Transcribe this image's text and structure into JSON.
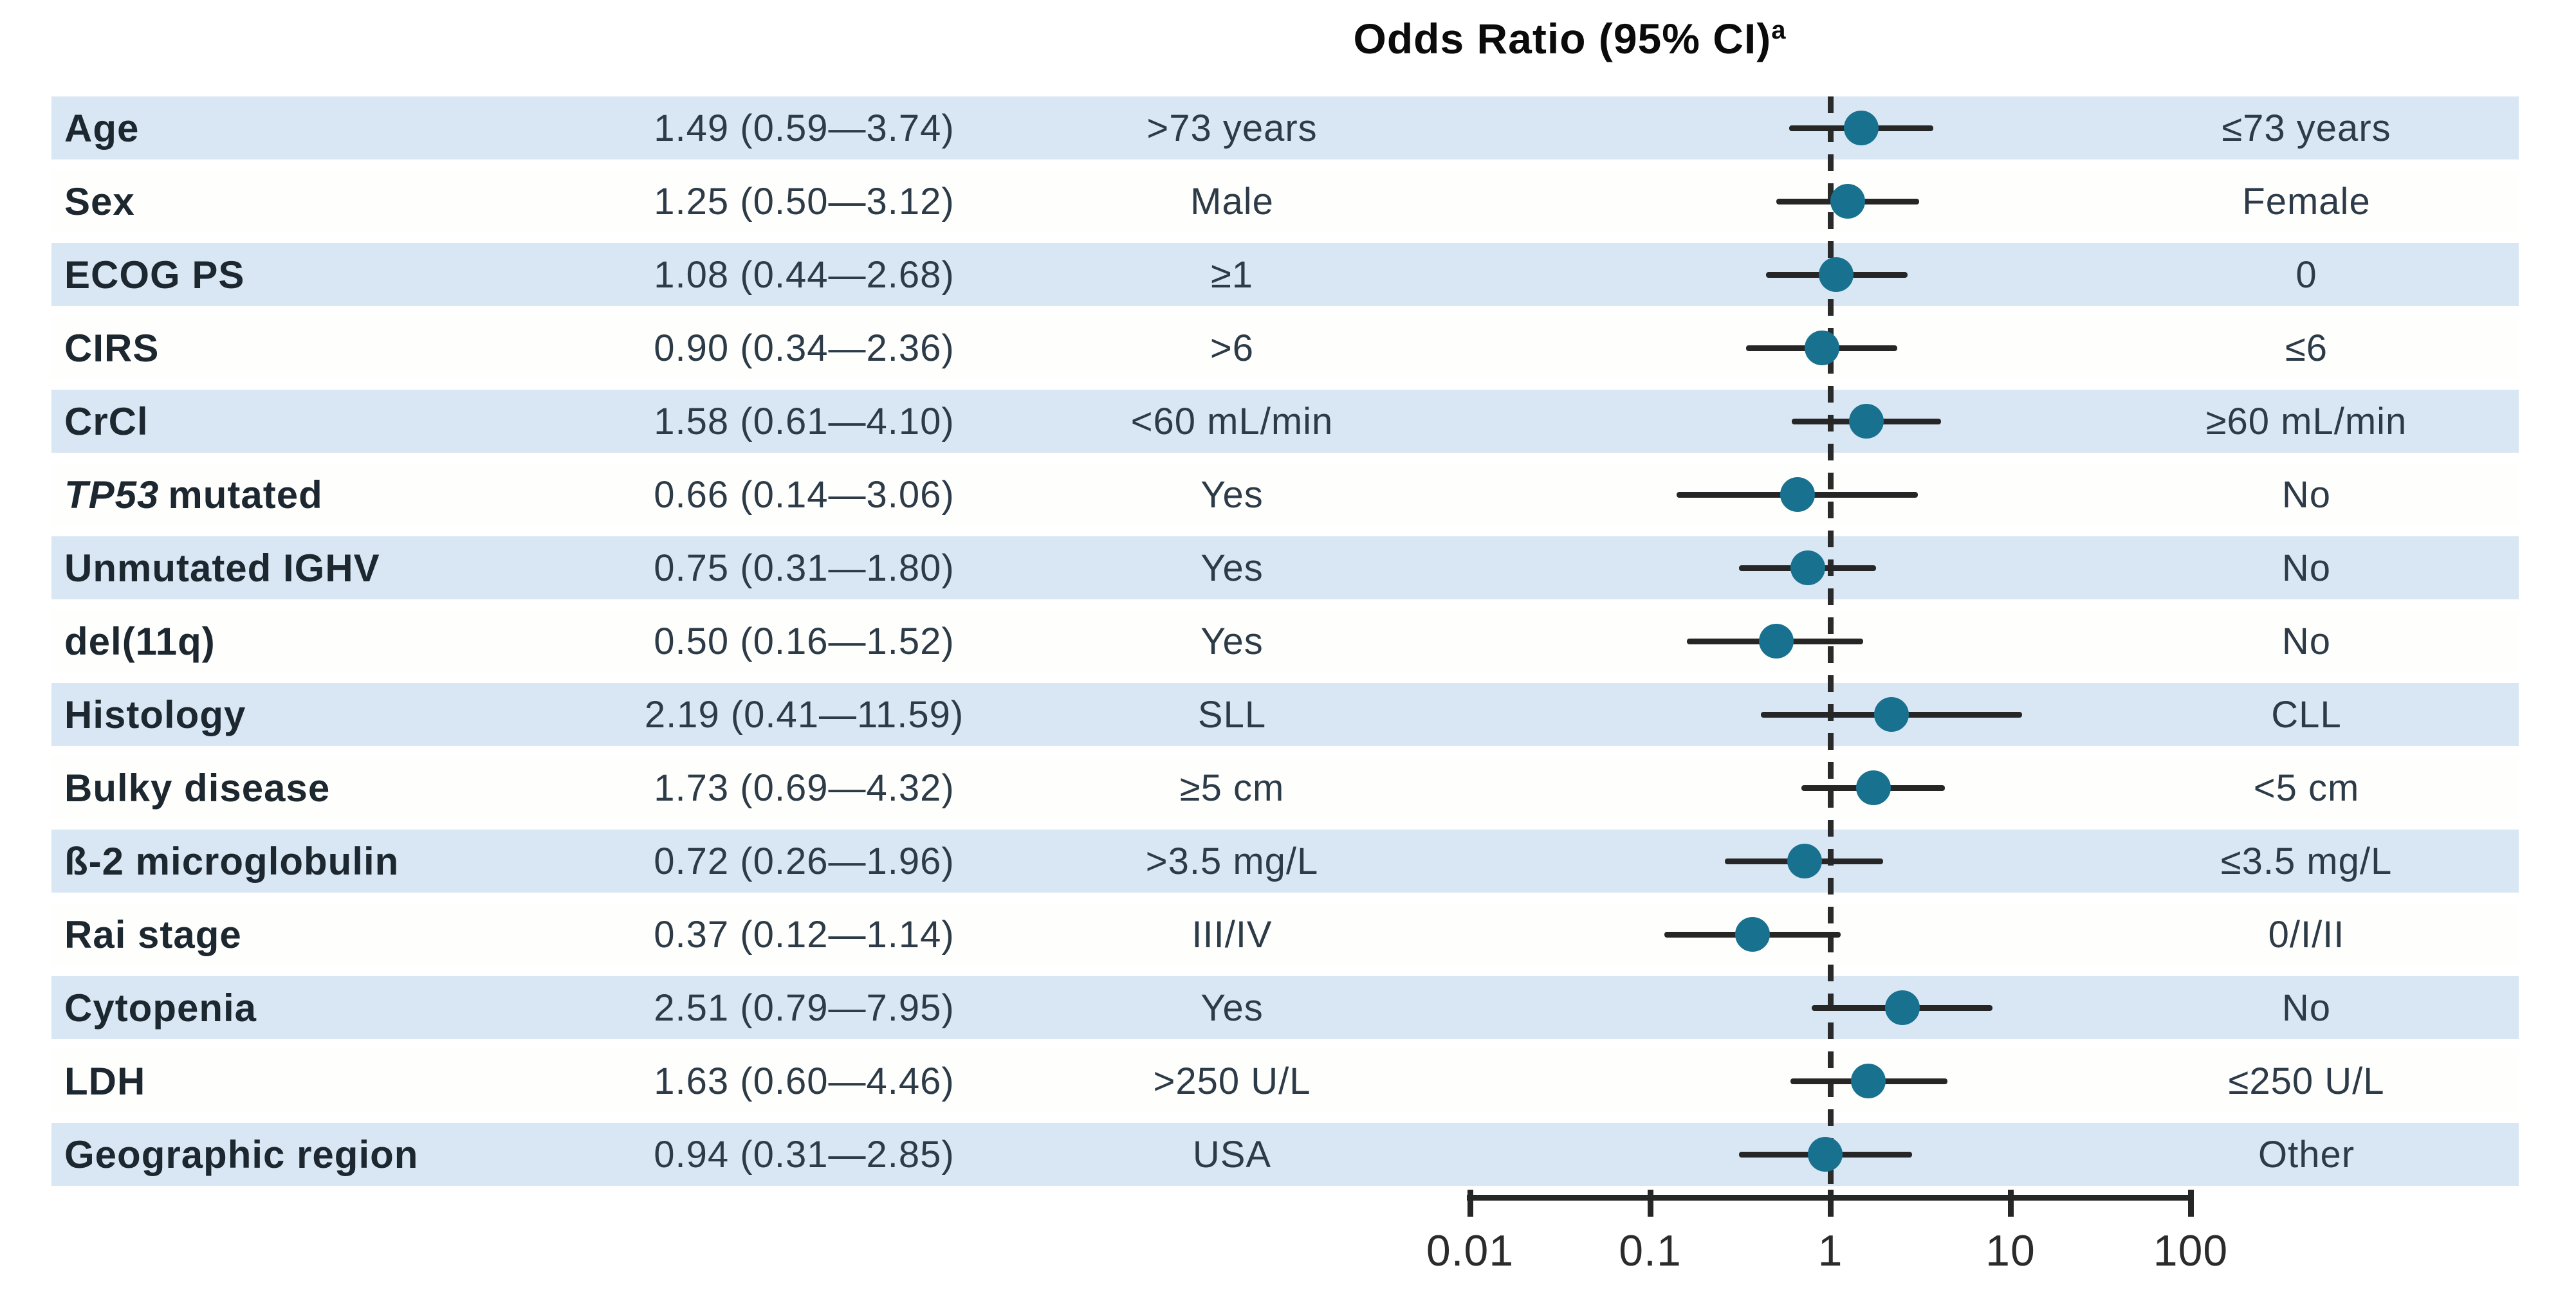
{
  "colors": {
    "band_blue": "#d9e6f3",
    "marker_teal": "#17718f",
    "line_dark": "#262626",
    "label_text": "#1c2730",
    "value_text": "#2c3b47"
  },
  "chart_data": {
    "type": "scatter",
    "variant": "forest-plot",
    "title": "Odds Ratio (95% CI)",
    "title_footnote_marker": "a",
    "xscale": "log",
    "xlim": [
      0.01,
      100
    ],
    "xticks": [
      0.01,
      0.1,
      1,
      10,
      100
    ],
    "xtick_labels": [
      "0.01",
      "0.1",
      "1",
      "10",
      "100"
    ],
    "reference_line": 1,
    "rows": [
      {
        "label": "Age",
        "label_italic_prefix": "",
        "or_text": "1.49 (0.59—3.74)",
        "group_left": ">73 years",
        "group_right": "≤73 years",
        "or": 1.49,
        "ci_low": 0.59,
        "ci_high": 3.74,
        "shaded": true
      },
      {
        "label": "Sex",
        "label_italic_prefix": "",
        "or_text": "1.25 (0.50—3.12)",
        "group_left": "Male",
        "group_right": "Female",
        "or": 1.25,
        "ci_low": 0.5,
        "ci_high": 3.12,
        "shaded": false
      },
      {
        "label": "ECOG PS",
        "label_italic_prefix": "",
        "or_text": "1.08 (0.44—2.68)",
        "group_left": "≥1",
        "group_right": "0",
        "or": 1.08,
        "ci_low": 0.44,
        "ci_high": 2.68,
        "shaded": true
      },
      {
        "label": "CIRS",
        "label_italic_prefix": "",
        "or_text": "0.90 (0.34—2.36)",
        "group_left": ">6",
        "group_right": "≤6",
        "or": 0.9,
        "ci_low": 0.34,
        "ci_high": 2.36,
        "shaded": false
      },
      {
        "label": "CrCl",
        "label_italic_prefix": "",
        "or_text": "1.58 (0.61—4.10)",
        "group_left": "<60 mL/min",
        "group_right": "≥60 mL/min",
        "or": 1.58,
        "ci_low": 0.61,
        "ci_high": 4.1,
        "shaded": true
      },
      {
        "label": "mutated",
        "label_italic_prefix": "TP53",
        "or_text": "0.66 (0.14—3.06)",
        "group_left": "Yes",
        "group_right": "No",
        "or": 0.66,
        "ci_low": 0.14,
        "ci_high": 3.06,
        "shaded": false
      },
      {
        "label": "Unmutated IGHV",
        "label_italic_prefix": "",
        "or_text": "0.75 (0.31—1.80)",
        "group_left": "Yes",
        "group_right": "No",
        "or": 0.75,
        "ci_low": 0.31,
        "ci_high": 1.8,
        "shaded": true
      },
      {
        "label": "del(11q)",
        "label_italic_prefix": "",
        "or_text": "0.50 (0.16—1.52)",
        "group_left": "Yes",
        "group_right": "No",
        "or": 0.5,
        "ci_low": 0.16,
        "ci_high": 1.52,
        "shaded": false
      },
      {
        "label": "Histology",
        "label_italic_prefix": "",
        "or_text": "2.19 (0.41—11.59)",
        "group_left": "SLL",
        "group_right": "CLL",
        "or": 2.19,
        "ci_low": 0.41,
        "ci_high": 11.59,
        "shaded": true
      },
      {
        "label": "Bulky disease",
        "label_italic_prefix": "",
        "or_text": "1.73 (0.69—4.32)",
        "group_left": "≥5 cm",
        "group_right": "<5 cm",
        "or": 1.73,
        "ci_low": 0.69,
        "ci_high": 4.32,
        "shaded": false
      },
      {
        "label": "ß-2 microglobulin",
        "label_italic_prefix": "",
        "or_text": "0.72 (0.26—1.96)",
        "group_left": ">3.5 mg/L",
        "group_right": "≤3.5 mg/L",
        "or": 0.72,
        "ci_low": 0.26,
        "ci_high": 1.96,
        "shaded": true
      },
      {
        "label": "Rai stage",
        "label_italic_prefix": "",
        "or_text": "0.37 (0.12—1.14)",
        "group_left": "III/IV",
        "group_right": "0/I/II",
        "or": 0.37,
        "ci_low": 0.12,
        "ci_high": 1.14,
        "shaded": false
      },
      {
        "label": "Cytopenia",
        "label_italic_prefix": "",
        "or_text": "2.51 (0.79—7.95)",
        "group_left": "Yes",
        "group_right": "No",
        "or": 2.51,
        "ci_low": 0.79,
        "ci_high": 7.95,
        "shaded": true
      },
      {
        "label": "LDH",
        "label_italic_prefix": "",
        "or_text": "1.63 (0.60—4.46)",
        "group_left": ">250 U/L",
        "group_right": "≤250 U/L",
        "or": 1.63,
        "ci_low": 0.6,
        "ci_high": 4.46,
        "shaded": false
      },
      {
        "label": "Geographic region",
        "label_italic_prefix": "",
        "or_text": "0.94 (0.31—2.85)",
        "group_left": "USA",
        "group_right": "Other",
        "or": 0.94,
        "ci_low": 0.31,
        "ci_high": 2.85,
        "shaded": true
      }
    ]
  }
}
